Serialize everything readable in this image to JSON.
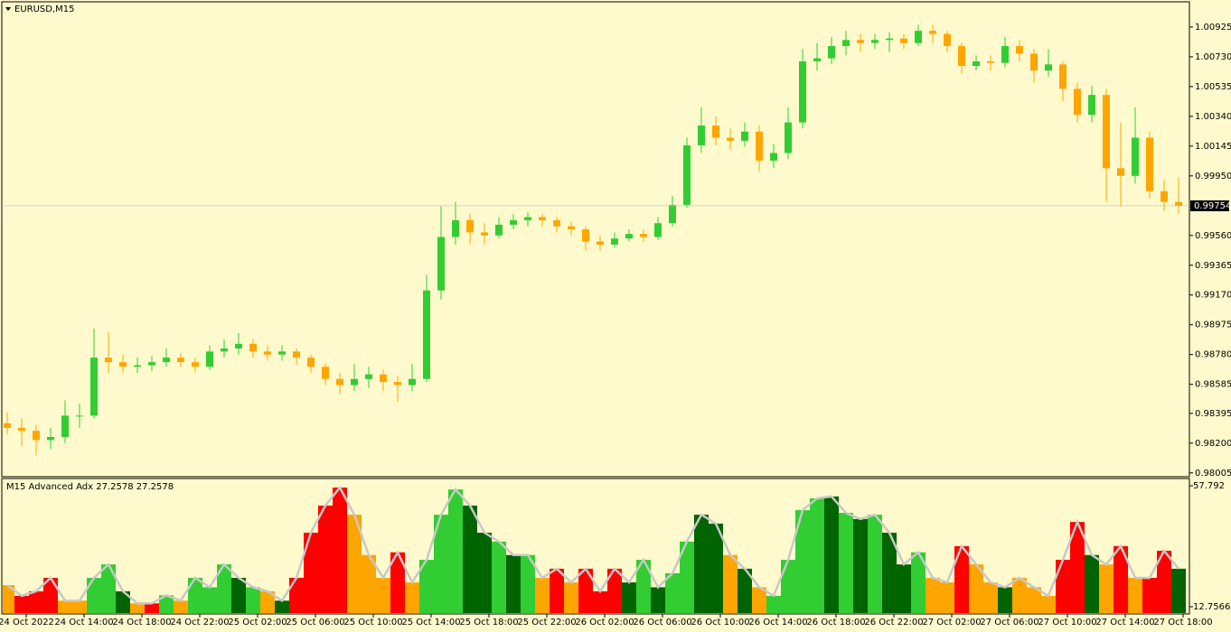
{
  "chart_data": [
    {
      "type": "candlestick",
      "title": "EURUSD,M15",
      "up_color": "#32cd32",
      "down_color": "#ffa500",
      "ylim": [
        0.9798,
        1.0109
      ],
      "yticks": [
        1.00925,
        {
          "value": 1.0073,
          "label": "1.00730"
        },
        1.00535,
        {
          "value": 1.0034,
          "label": "1.00340"
        },
        1.00145,
        {
          "value": 0.9995,
          "label": "0.99950"
        },
        {
          "value": 0.9956,
          "label": "0.99560"
        },
        0.99365,
        {
          "value": 0.9917,
          "label": "0.99170"
        },
        0.98975,
        {
          "value": 0.9878,
          "label": "0.98780"
        },
        0.98585,
        0.98395,
        {
          "value": 0.982,
          "label": "0.98200"
        },
        0.98005
      ],
      "current_price": 0.99754,
      "x_labels": [
        "24 Oct 2022",
        "24 Oct 14:00",
        "24 Oct 18:00",
        "24 Oct 22:00",
        "25 Oct 02:00",
        "25 Oct 06:00",
        "25 Oct 10:00",
        "25 Oct 14:00",
        "25 Oct 18:00",
        "25 Oct 22:00",
        "26 Oct 02:00",
        "26 Oct 06:00",
        "26 Oct 10:00",
        "26 Oct 14:00",
        "26 Oct 18:00",
        "26 Oct 22:00",
        "27 Oct 02:00",
        "27 Oct 06:00",
        "27 Oct 10:00",
        "27 Oct 14:00",
        "27 Oct 18:00"
      ],
      "candles": [
        [
          0.9833,
          0.984,
          0.9826,
          0.983
        ],
        [
          0.983,
          0.9836,
          0.9818,
          0.9828
        ],
        [
          0.9828,
          0.9832,
          0.9812,
          0.9822
        ],
        [
          0.9822,
          0.983,
          0.9816,
          0.9824
        ],
        [
          0.9824,
          0.9848,
          0.982,
          0.9838
        ],
        [
          0.9838,
          0.9846,
          0.983,
          0.9838
        ],
        [
          0.9838,
          0.9895,
          0.9836,
          0.9876
        ],
        [
          0.9876,
          0.9893,
          0.9866,
          0.9873
        ],
        [
          0.9873,
          0.9878,
          0.9866,
          0.987
        ],
        [
          0.987,
          0.9876,
          0.9866,
          0.9871
        ],
        [
          0.9871,
          0.9877,
          0.9867,
          0.9873
        ],
        [
          0.9873,
          0.9882,
          0.987,
          0.9876
        ],
        [
          0.9876,
          0.9879,
          0.987,
          0.9873
        ],
        [
          0.9873,
          0.9876,
          0.9866,
          0.987
        ],
        [
          0.987,
          0.9884,
          0.9868,
          0.988
        ],
        [
          0.988,
          0.9888,
          0.9876,
          0.9882
        ],
        [
          0.9882,
          0.9892,
          0.9878,
          0.9885
        ],
        [
          0.9885,
          0.9888,
          0.9876,
          0.988
        ],
        [
          0.988,
          0.9884,
          0.9874,
          0.9878
        ],
        [
          0.9878,
          0.9884,
          0.9874,
          0.988
        ],
        [
          0.988,
          0.9882,
          0.9872,
          0.9876
        ],
        [
          0.9876,
          0.9878,
          0.9866,
          0.987
        ],
        [
          0.987,
          0.9872,
          0.9858,
          0.9862
        ],
        [
          0.9862,
          0.9866,
          0.9852,
          0.9858
        ],
        [
          0.9858,
          0.9872,
          0.9854,
          0.9862
        ],
        [
          0.9862,
          0.987,
          0.9856,
          0.9865
        ],
        [
          0.9865,
          0.9868,
          0.9854,
          0.986
        ],
        [
          0.986,
          0.9864,
          0.9847,
          0.9858
        ],
        [
          0.9858,
          0.9872,
          0.9854,
          0.9862
        ],
        [
          0.9862,
          0.993,
          0.986,
          0.992
        ],
        [
          0.992,
          0.9975,
          0.9914,
          0.9955
        ],
        [
          0.9955,
          0.9978,
          0.995,
          0.9966
        ],
        [
          0.9966,
          0.997,
          0.995,
          0.9958
        ],
        [
          0.9958,
          0.9964,
          0.995,
          0.9956
        ],
        [
          0.9956,
          0.9968,
          0.9954,
          0.9963
        ],
        [
          0.9963,
          0.997,
          0.996,
          0.9966
        ],
        [
          0.9966,
          0.9971,
          0.9962,
          0.9968
        ],
        [
          0.9968,
          0.997,
          0.9962,
          0.9966
        ],
        [
          0.9966,
          0.9968,
          0.9958,
          0.9962
        ],
        [
          0.9962,
          0.9965,
          0.9956,
          0.996
        ],
        [
          0.996,
          0.9962,
          0.9946,
          0.9952
        ],
        [
          0.9952,
          0.9956,
          0.9946,
          0.995
        ],
        [
          0.995,
          0.9958,
          0.9948,
          0.9954
        ],
        [
          0.9954,
          0.996,
          0.9952,
          0.9957
        ],
        [
          0.9957,
          0.996,
          0.9952,
          0.9955
        ],
        [
          0.9955,
          0.9968,
          0.9953,
          0.9964
        ],
        [
          0.9964,
          0.9982,
          0.9962,
          0.9976
        ],
        [
          0.9976,
          1.002,
          0.9974,
          1.0015
        ],
        [
          1.0015,
          1.004,
          1.001,
          1.0028
        ],
        [
          1.0028,
          1.0034,
          1.0015,
          1.002
        ],
        [
          1.002,
          1.0026,
          1.0012,
          1.0018
        ],
        [
          1.0018,
          1.003,
          1.0014,
          1.0024
        ],
        [
          1.0024,
          1.0028,
          0.9998,
          1.0005
        ],
        [
          1.0005,
          1.0016,
          1.0,
          1.001
        ],
        [
          1.001,
          1.004,
          1.0006,
          1.003
        ],
        [
          1.003,
          1.0078,
          1.0026,
          1.007
        ],
        [
          1.007,
          1.0082,
          1.0064,
          1.0072
        ],
        [
          1.0072,
          1.0086,
          1.0068,
          1.008
        ],
        [
          1.008,
          1.009,
          1.0074,
          1.0084
        ],
        [
          1.0084,
          1.0088,
          1.0076,
          1.0082
        ],
        [
          1.0082,
          1.0088,
          1.0078,
          1.0084
        ],
        [
          1.0084,
          1.0089,
          1.0076,
          1.0085
        ],
        [
          1.0085,
          1.0088,
          1.0078,
          1.0082
        ],
        [
          1.0082,
          1.0094,
          1.008,
          1.009
        ],
        [
          1.009,
          1.0094,
          1.0082,
          1.0088
        ],
        [
          1.0088,
          1.009,
          1.0076,
          1.008
        ],
        [
          1.008,
          1.0082,
          1.0062,
          1.0067
        ],
        [
          1.0067,
          1.0074,
          1.0064,
          1.007
        ],
        [
          1.007,
          1.0074,
          1.0064,
          1.0069
        ],
        [
          1.0069,
          1.0086,
          1.0066,
          1.008
        ],
        [
          1.008,
          1.0084,
          1.007,
          1.0075
        ],
        [
          1.0075,
          1.0078,
          1.0056,
          1.0064
        ],
        [
          1.0064,
          1.0078,
          1.006,
          1.0068
        ],
        [
          1.0068,
          1.007,
          1.0044,
          1.0052
        ],
        [
          1.0052,
          1.0056,
          1.003,
          1.0035
        ],
        [
          1.0035,
          1.0054,
          1.003,
          1.0048
        ],
        [
          1.0048,
          1.0052,
          0.9978,
          1.0
        ],
        [
          1.0,
          1.003,
          0.9975,
          0.9995
        ],
        [
          0.9995,
          1.004,
          0.999,
          1.002
        ],
        [
          1.002,
          1.0024,
          0.998,
          0.9985
        ],
        [
          0.9985,
          0.9992,
          0.9972,
          0.9978
        ],
        [
          0.9978,
          0.9994,
          0.997,
          0.99754
        ]
      ]
    },
    {
      "type": "bar",
      "title": "M15 Advanced Adx 27.2578 27.2578",
      "ylim": [
        12.7566,
        57.792
      ],
      "yticks": [
        57.792,
        12.7566
      ],
      "outline_color": "#c8c8c8",
      "values": [
        20.8,
        16.8,
        18.5,
        23.5,
        15,
        15,
        23.5,
        28.5,
        18.5,
        14,
        14,
        17,
        15,
        23.5,
        20,
        28.5,
        23.5,
        20,
        18.5,
        15,
        23.5,
        40.3,
        50.4,
        57.1,
        47,
        32,
        23.5,
        33,
        21.8,
        30.2,
        47,
        56.4,
        50.4,
        40.3,
        37,
        32,
        32,
        23.5,
        26.9,
        21.8,
        26.9,
        18.5,
        26.9,
        21.8,
        30.2,
        20,
        25.2,
        37,
        47,
        43.7,
        32,
        26.9,
        20,
        16.8,
        30.2,
        48.7,
        53.1,
        53.8,
        47.7,
        45.4,
        47,
        40.3,
        28.5,
        33,
        23.5,
        21.8,
        35.3,
        28.5,
        21.8,
        20,
        23.5,
        20,
        16.8,
        30.2,
        44.3,
        32,
        28.5,
        35.3,
        23.5,
        23.5,
        33.6,
        26.9
      ],
      "colors": [
        "#ffa500",
        "#ff0000",
        "#ff0000",
        "#ff0000",
        "#ffa500",
        "#ffa500",
        "#32cd32",
        "#32cd32",
        "#006400",
        "#ffa500",
        "#ff0000",
        "#32cd32",
        "#ffa500",
        "#32cd32",
        "#32cd32",
        "#32cd32",
        "#006400",
        "#32cd32",
        "#ffa500",
        "#006400",
        "#ff0000",
        "#ff0000",
        "#ff0000",
        "#ff0000",
        "#ffa500",
        "#ffa500",
        "#ffa500",
        "#ff0000",
        "#ffa500",
        "#32cd32",
        "#32cd32",
        "#32cd32",
        "#006400",
        "#006400",
        "#32cd32",
        "#006400",
        "#32cd32",
        "#ffa500",
        "#ff0000",
        "#ffa500",
        "#ff0000",
        "#ff0000",
        "#ff0000",
        "#006400",
        "#32cd32",
        "#006400",
        "#32cd32",
        "#32cd32",
        "#006400",
        "#006400",
        "#ffa500",
        "#006400",
        "#ffa500",
        "#32cd32",
        "#32cd32",
        "#32cd32",
        "#32cd32",
        "#006400",
        "#32cd32",
        "#006400",
        "#32cd32",
        "#006400",
        "#006400",
        "#32cd32",
        "#ffa500",
        "#ffa500",
        "#ff0000",
        "#ffa500",
        "#ffa500",
        "#006400",
        "#ffa500",
        "#ffa500",
        "#ffa500",
        "#ff0000",
        "#ff0000",
        "#006400",
        "#ffa500",
        "#ff0000",
        "#ffa500",
        "#ff0000",
        "#ff0000",
        "#006400"
      ]
    }
  ]
}
